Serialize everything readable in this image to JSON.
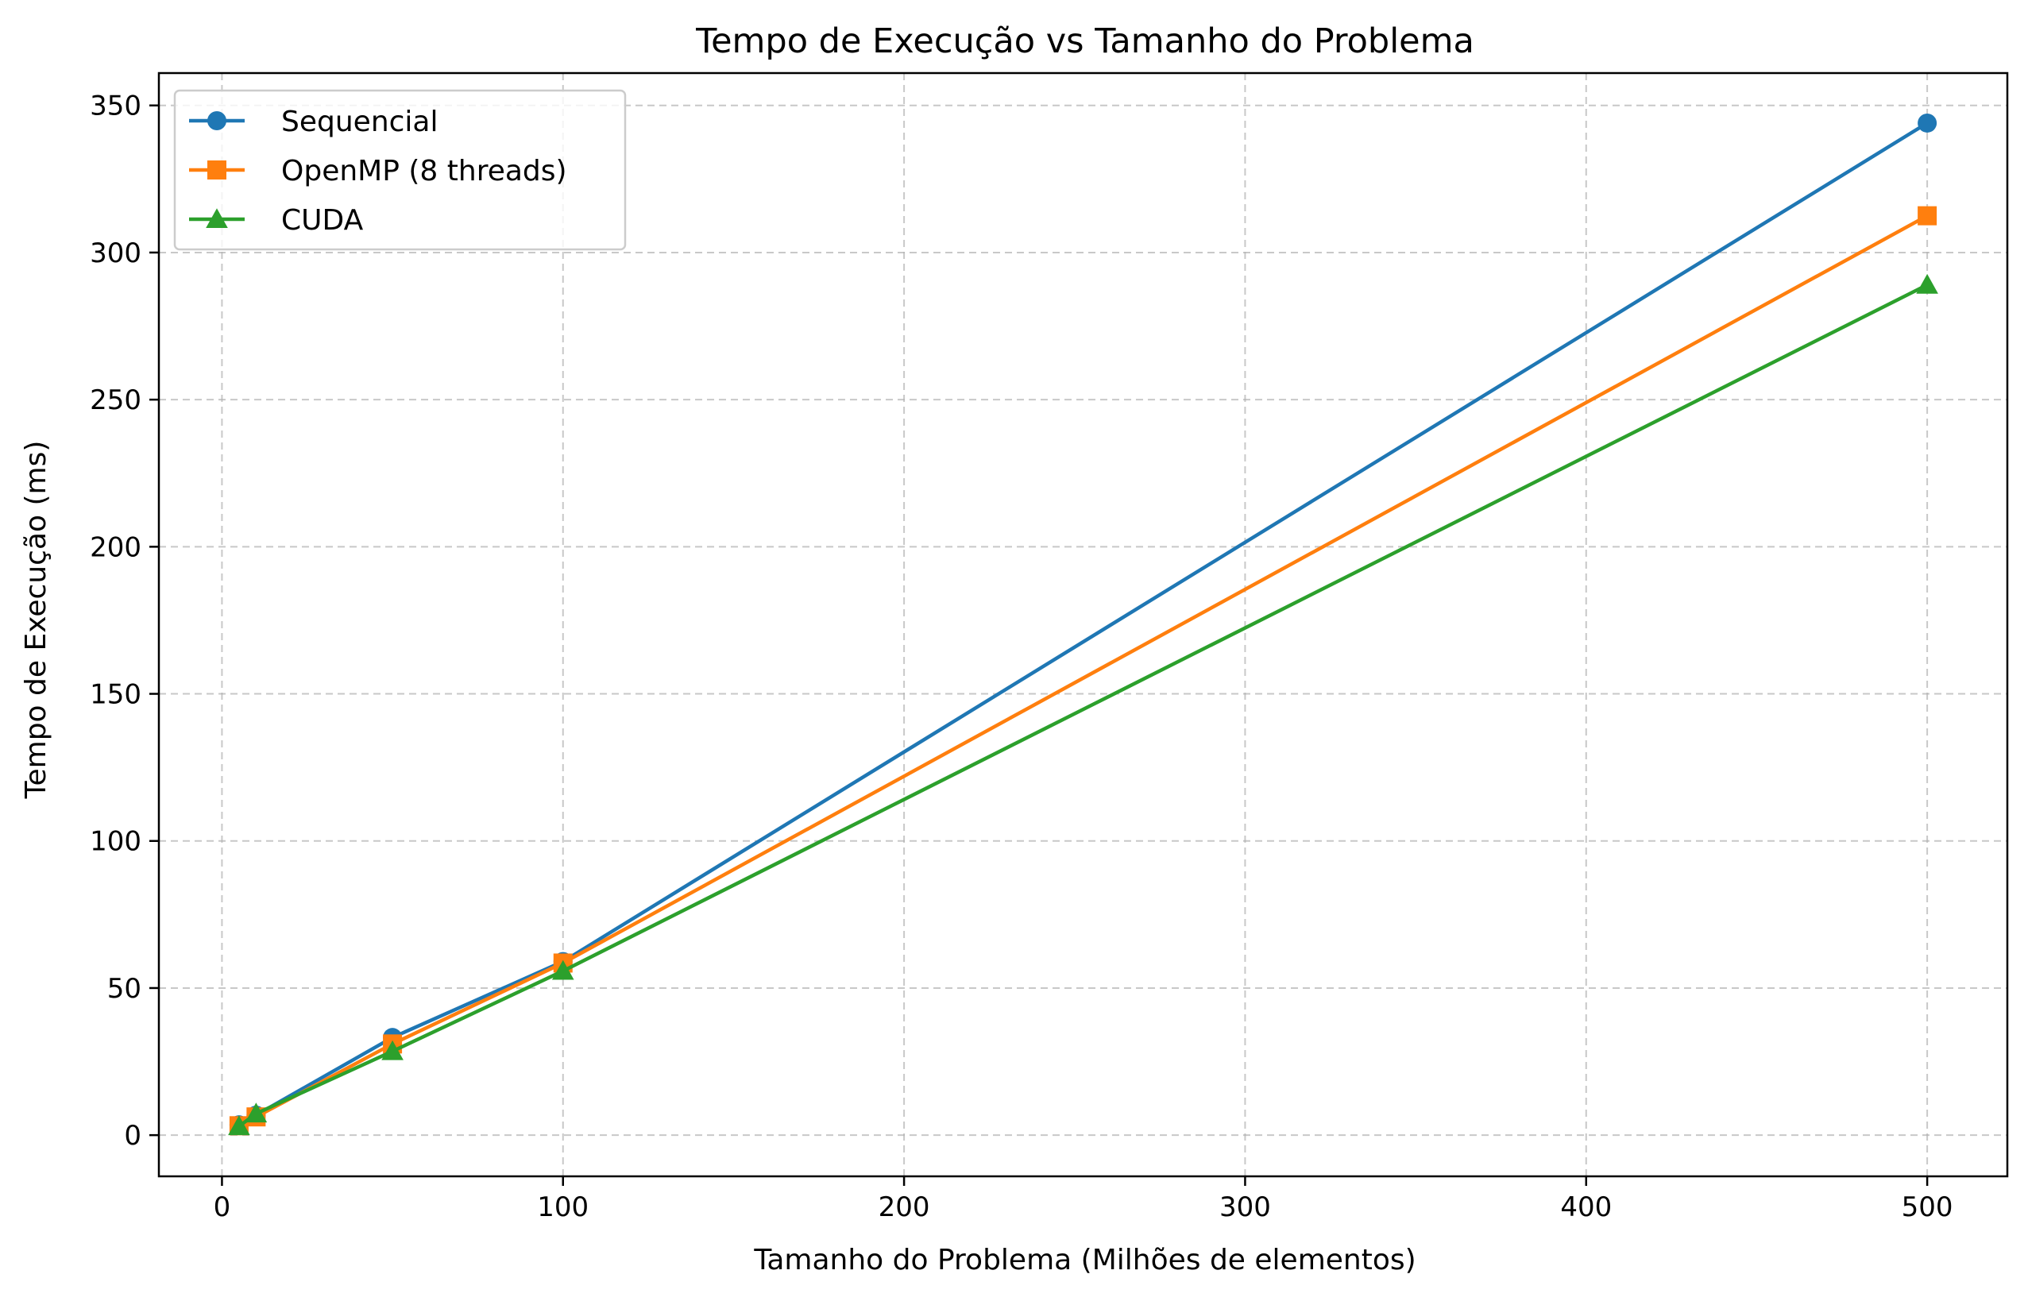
{
  "chart_data": {
    "type": "line",
    "title": "Tempo de Execução vs Tamanho do Problema",
    "xlabel": "Tamanho do Problema (Milhões de elementos)",
    "ylabel": "Tempo de Execução (ms)",
    "x": [
      5,
      10,
      50,
      100,
      500
    ],
    "xlim": [
      -18.5,
      523.5
    ],
    "ylim": [
      -14,
      361
    ],
    "xticks": [
      0,
      100,
      200,
      300,
      400,
      500
    ],
    "yticks": [
      0,
      50,
      100,
      150,
      200,
      250,
      300,
      350
    ],
    "grid": true,
    "legend_position": "top-left",
    "series": [
      {
        "name": "Sequencial",
        "values": [
          3.5,
          6.8,
          33.2,
          59.0,
          344.0
        ],
        "color": "#1f77b4",
        "marker": "circle"
      },
      {
        "name": "OpenMP (8 threads)",
        "values": [
          3.2,
          6.2,
          31.0,
          58.5,
          312.5
        ],
        "color": "#ff7f0e",
        "marker": "square"
      },
      {
        "name": "CUDA",
        "values": [
          3.0,
          7.3,
          28.5,
          55.8,
          289.0
        ],
        "color": "#2ca02c",
        "marker": "triangle"
      }
    ]
  }
}
